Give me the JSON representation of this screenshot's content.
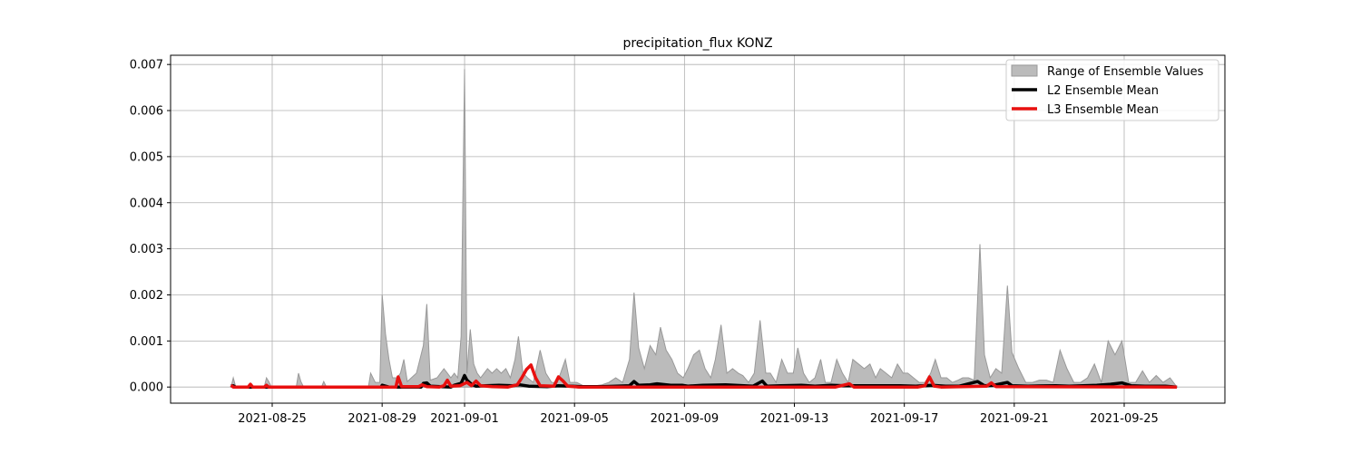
{
  "chart_data": {
    "type": "area",
    "title": "precipitation_flux KONZ",
    "xlabel": "",
    "ylabel": "",
    "ylim": [
      -0.00035,
      0.0072
    ],
    "x_ticks": [
      "2021-08-25",
      "2021-08-29",
      "2021-09-01",
      "2021-09-05",
      "2021-09-09",
      "2021-09-13",
      "2021-09-17",
      "2021-09-21",
      "2021-09-25"
    ],
    "y_ticks": [
      "0.000",
      "0.001",
      "0.002",
      "0.003",
      "0.004",
      "0.005",
      "0.006",
      "0.007"
    ],
    "grid": true,
    "legend_position": "top-right",
    "colors": {
      "range": "#bbbbbb",
      "range_edge": "#999999",
      "l2": "#000000",
      "l3": "#e8100f",
      "grid": "#b0b0b0"
    },
    "legend": [
      "Range of Ensemble Values",
      "L2 Ensemble Mean",
      "L3 Ensemble Mean"
    ],
    "range_upper": [
      [
        "2021-08-23T12:00",
        0
      ],
      [
        "2021-08-23T14:00",
        0.0002
      ],
      [
        "2021-08-23T16:00",
        2e-05
      ],
      [
        "2021-08-24T17:00",
        0
      ],
      [
        "2021-08-24T19:00",
        0.0002
      ],
      [
        "2021-08-24T21:00",
        0.00012
      ],
      [
        "2021-08-24T23:00",
        2e-05
      ],
      [
        "2021-08-25T21:00",
        0
      ],
      [
        "2021-08-25T23:00",
        0.0003
      ],
      [
        "2021-08-26T01:00",
        0.00012
      ],
      [
        "2021-08-26T03:00",
        2e-05
      ],
      [
        "2021-08-26T19:00",
        0
      ],
      [
        "2021-08-26T21:00",
        0.00012
      ],
      [
        "2021-08-26T23:00",
        2e-05
      ],
      [
        "2021-08-28T12:00",
        0
      ],
      [
        "2021-08-28T14:00",
        0.0003
      ],
      [
        "2021-08-28T18:00",
        0.0001
      ],
      [
        "2021-08-28T22:00",
        0.0001
      ],
      [
        "2021-08-29T00:00",
        0.002
      ],
      [
        "2021-08-29T03:00",
        0.00115
      ],
      [
        "2021-08-29T06:00",
        0.0006
      ],
      [
        "2021-08-29T09:00",
        0.0002
      ],
      [
        "2021-08-29T13:00",
        0.0002
      ],
      [
        "2021-08-29T16:00",
        0.0003
      ],
      [
        "2021-08-29T19:00",
        0.0006
      ],
      [
        "2021-08-29T22:00",
        0.00012
      ],
      [
        "2021-08-30T06:00",
        0.0003
      ],
      [
        "2021-08-30T09:00",
        0.0006
      ],
      [
        "2021-08-30T12:00",
        0.0009
      ],
      [
        "2021-08-30T15:00",
        0.0018
      ],
      [
        "2021-08-30T18:00",
        0.00015
      ],
      [
        "2021-08-31T00:00",
        0.0002
      ],
      [
        "2021-08-31T03:00",
        0.0003
      ],
      [
        "2021-08-31T06:00",
        0.0004
      ],
      [
        "2021-08-31T09:00",
        0.0003
      ],
      [
        "2021-08-31T12:00",
        0.0002
      ],
      [
        "2021-08-31T15:00",
        0.0003
      ],
      [
        "2021-08-31T18:00",
        0.0002
      ],
      [
        "2021-08-31T21:00",
        0.0011
      ],
      [
        "2021-09-01T00:00",
        0.0069
      ],
      [
        "2021-09-01T02:00",
        0.0003
      ],
      [
        "2021-09-01T05:00",
        0.00125
      ],
      [
        "2021-09-01T08:00",
        0.0005
      ],
      [
        "2021-09-01T11:00",
        0.0003
      ],
      [
        "2021-09-01T14:00",
        0.0002
      ],
      [
        "2021-09-01T20:00",
        0.0004
      ],
      [
        "2021-09-02T00:00",
        0.0003
      ],
      [
        "2021-09-02T04:00",
        0.0004
      ],
      [
        "2021-09-02T08:00",
        0.0003
      ],
      [
        "2021-09-02T12:00",
        0.0004
      ],
      [
        "2021-09-02T16:00",
        0.0002
      ],
      [
        "2021-09-02T20:00",
        0.0006
      ],
      [
        "2021-09-02T23:00",
        0.0011
      ],
      [
        "2021-09-03T03:00",
        0.0003
      ],
      [
        "2021-09-03T07:00",
        0.0002
      ],
      [
        "2021-09-03T12:00",
        0.0001
      ],
      [
        "2021-09-03T18:00",
        0.0008
      ],
      [
        "2021-09-03T23:00",
        0.0003
      ],
      [
        "2021-09-04T04:00",
        0.0001
      ],
      [
        "2021-09-04T09:00",
        0.0001
      ],
      [
        "2021-09-04T16:00",
        0.0006
      ],
      [
        "2021-09-04T20:00",
        0.0001
      ],
      [
        "2021-09-05T02:00",
        0.0001
      ],
      [
        "2021-09-05T10:00",
        0
      ],
      [
        "2021-09-06T00:00",
        5e-05
      ],
      [
        "2021-09-06T06:00",
        0.0001
      ],
      [
        "2021-09-06T12:00",
        0.0002
      ],
      [
        "2021-09-06T18:00",
        0.0001
      ],
      [
        "2021-09-07T00:00",
        0.0006
      ],
      [
        "2021-09-07T04:00",
        0.00205
      ],
      [
        "2021-09-07T08:00",
        0.00085
      ],
      [
        "2021-09-07T13:00",
        0.0004
      ],
      [
        "2021-09-07T18:00",
        0.0009
      ],
      [
        "2021-09-07T23:00",
        0.0007
      ],
      [
        "2021-09-08T03:00",
        0.0013
      ],
      [
        "2021-09-08T08:00",
        0.0008
      ],
      [
        "2021-09-08T13:00",
        0.0006
      ],
      [
        "2021-09-08T18:00",
        0.0003
      ],
      [
        "2021-09-08T23:00",
        0.0002
      ],
      [
        "2021-09-09T03:00",
        0.0004
      ],
      [
        "2021-09-09T08:00",
        0.0007
      ],
      [
        "2021-09-09T13:00",
        0.0008
      ],
      [
        "2021-09-09T18:00",
        0.0004
      ],
      [
        "2021-09-09T23:00",
        0.0002
      ],
      [
        "2021-09-10T03:00",
        0.0006
      ],
      [
        "2021-09-10T08:00",
        0.00135
      ],
      [
        "2021-09-10T13:00",
        0.0003
      ],
      [
        "2021-09-10T18:00",
        0.0004
      ],
      [
        "2021-09-10T23:00",
        0.0003
      ],
      [
        "2021-09-11T03:00",
        0.00025
      ],
      [
        "2021-09-11T08:00",
        0.0001
      ],
      [
        "2021-09-11T13:00",
        0.0003
      ],
      [
        "2021-09-11T18:00",
        0.00145
      ],
      [
        "2021-09-11T23:00",
        0.0003
      ],
      [
        "2021-09-12T03:00",
        0.0003
      ],
      [
        "2021-09-12T08:00",
        0.0001
      ],
      [
        "2021-09-12T13:00",
        0.0006
      ],
      [
        "2021-09-12T18:00",
        0.0003
      ],
      [
        "2021-09-12T23:00",
        0.0003
      ],
      [
        "2021-09-13T03:00",
        0.00085
      ],
      [
        "2021-09-13T08:00",
        0.0003
      ],
      [
        "2021-09-13T13:00",
        0.0001
      ],
      [
        "2021-09-13T18:00",
        0.0002
      ],
      [
        "2021-09-13T23:00",
        0.0006
      ],
      [
        "2021-09-14T03:00",
        0.0001
      ],
      [
        "2021-09-14T08:00",
        0.0001
      ],
      [
        "2021-09-14T13:00",
        0.0006
      ],
      [
        "2021-09-14T18:00",
        0.0003
      ],
      [
        "2021-09-14T23:00",
        0.0001
      ],
      [
        "2021-09-15T03:00",
        0.0006
      ],
      [
        "2021-09-15T08:00",
        0.0005
      ],
      [
        "2021-09-15T13:00",
        0.0004
      ],
      [
        "2021-09-15T18:00",
        0.0005
      ],
      [
        "2021-09-15T23:00",
        0.0002
      ],
      [
        "2021-09-16T03:00",
        0.0004
      ],
      [
        "2021-09-16T08:00",
        0.0003
      ],
      [
        "2021-09-16T13:00",
        0.0002
      ],
      [
        "2021-09-16T18:00",
        0.0005
      ],
      [
        "2021-09-16T23:00",
        0.0003
      ],
      [
        "2021-09-17T03:00",
        0.0003
      ],
      [
        "2021-09-17T08:00",
        0.0002
      ],
      [
        "2021-09-17T13:00",
        0.0001
      ],
      [
        "2021-09-17T18:00",
        0.0001
      ],
      [
        "2021-09-17T23:00",
        0.0003
      ],
      [
        "2021-09-18T03:00",
        0.0006
      ],
      [
        "2021-09-18T08:00",
        0.0002
      ],
      [
        "2021-09-18T13:00",
        0.0002
      ],
      [
        "2021-09-18T18:00",
        0.0001
      ],
      [
        "2021-09-18T23:00",
        0.00015
      ],
      [
        "2021-09-19T03:00",
        0.0002
      ],
      [
        "2021-09-19T08:00",
        0.0002
      ],
      [
        "2021-09-19T13:00",
        0.00015
      ],
      [
        "2021-09-19T18:00",
        0.0031
      ],
      [
        "2021-09-19T22:00",
        0.0007
      ],
      [
        "2021-09-20T03:00",
        0.0002
      ],
      [
        "2021-09-20T08:00",
        0.0004
      ],
      [
        "2021-09-20T13:00",
        0.0003
      ],
      [
        "2021-09-20T18:00",
        0.0022
      ],
      [
        "2021-09-20T22:00",
        0.00075
      ],
      [
        "2021-09-21T04:00",
        0.0004
      ],
      [
        "2021-09-21T10:00",
        0.0001
      ],
      [
        "2021-09-21T16:00",
        0.0001
      ],
      [
        "2021-09-21T22:00",
        0.00015
      ],
      [
        "2021-09-22T04:00",
        0.00015
      ],
      [
        "2021-09-22T10:00",
        0.0001
      ],
      [
        "2021-09-22T16:00",
        0.0008
      ],
      [
        "2021-09-22T22:00",
        0.0004
      ],
      [
        "2021-09-23T04:00",
        0.0001
      ],
      [
        "2021-09-23T10:00",
        0.0001
      ],
      [
        "2021-09-23T16:00",
        0.0002
      ],
      [
        "2021-09-23T22:00",
        0.0005
      ],
      [
        "2021-09-24T04:00",
        0.0001
      ],
      [
        "2021-09-24T10:00",
        0.001
      ],
      [
        "2021-09-24T16:00",
        0.0007
      ],
      [
        "2021-09-24T22:00",
        0.001
      ],
      [
        "2021-09-25T04:00",
        0.0001
      ],
      [
        "2021-09-25T10:00",
        0.0001
      ],
      [
        "2021-09-25T16:00",
        0.00035
      ],
      [
        "2021-09-25T22:00",
        0.0001
      ],
      [
        "2021-09-26T04:00",
        0.00025
      ],
      [
        "2021-09-26T10:00",
        0.0001
      ],
      [
        "2021-09-26T16:00",
        0.0002
      ],
      [
        "2021-09-26T22:00",
        0
      ]
    ],
    "series": [
      {
        "name": "L2 Ensemble Mean",
        "points": [
          [
            "2021-08-23T12:00",
            2e-05
          ],
          [
            "2021-08-23T14:00",
            3e-05
          ],
          [
            "2021-08-23T16:00",
            0
          ],
          [
            "2021-08-28T23:00",
            0
          ],
          [
            "2021-08-29T00:00",
            4e-05
          ],
          [
            "2021-08-29T03:00",
            2e-05
          ],
          [
            "2021-08-29T06:00",
            0
          ],
          [
            "2021-08-30T10:00",
            0
          ],
          [
            "2021-08-30T12:00",
            8e-05
          ],
          [
            "2021-08-30T15:00",
            9e-05
          ],
          [
            "2021-08-30T18:00",
            2e-05
          ],
          [
            "2021-08-31T12:00",
            0
          ],
          [
            "2021-08-31T15:00",
            4e-05
          ],
          [
            "2021-08-31T21:00",
            8e-05
          ],
          [
            "2021-09-01T00:00",
            0.00025
          ],
          [
            "2021-09-01T02:00",
            0.00015
          ],
          [
            "2021-09-01T06:00",
            6e-05
          ],
          [
            "2021-09-01T10:00",
            2e-05
          ],
          [
            "2021-09-01T18:00",
            3e-05
          ],
          [
            "2021-09-02T06:00",
            4e-05
          ],
          [
            "2021-09-02T18:00",
            3e-05
          ],
          [
            "2021-09-03T00:00",
            5e-05
          ],
          [
            "2021-09-03T08:00",
            2e-05
          ],
          [
            "2021-09-04T00:00",
            1e-05
          ],
          [
            "2021-09-04T10:00",
            3e-05
          ],
          [
            "2021-09-05T06:00",
            1e-05
          ],
          [
            "2021-09-06T00:00",
            1e-05
          ],
          [
            "2021-09-06T12:00",
            2e-05
          ],
          [
            "2021-09-07T00:00",
            3e-05
          ],
          [
            "2021-09-07T04:00",
            0.00012
          ],
          [
            "2021-09-07T08:00",
            4e-05
          ],
          [
            "2021-09-07T18:00",
            5e-05
          ],
          [
            "2021-09-08T00:00",
            7e-05
          ],
          [
            "2021-09-08T12:00",
            4e-05
          ],
          [
            "2021-09-08T22:00",
            4e-05
          ],
          [
            "2021-09-09T03:00",
            2e-05
          ],
          [
            "2021-09-09T16:00",
            4e-05
          ],
          [
            "2021-09-10T12:00",
            5e-05
          ],
          [
            "2021-09-11T12:00",
            2e-05
          ],
          [
            "2021-09-11T20:00",
            0.00013
          ],
          [
            "2021-09-12T00:00",
            2e-05
          ],
          [
            "2021-09-12T12:00",
            3e-05
          ],
          [
            "2021-09-13T06:00",
            4e-05
          ],
          [
            "2021-09-13T18:00",
            2e-05
          ],
          [
            "2021-09-14T08:00",
            4e-05
          ],
          [
            "2021-09-14T20:00",
            3e-05
          ],
          [
            "2021-09-15T06:00",
            3e-05
          ],
          [
            "2021-09-16T00:00",
            3e-05
          ],
          [
            "2021-09-16T20:00",
            3e-05
          ],
          [
            "2021-09-17T10:00",
            2e-05
          ],
          [
            "2021-09-18T00:00",
            4e-05
          ],
          [
            "2021-09-18T12:00",
            2e-05
          ],
          [
            "2021-09-19T00:00",
            2e-05
          ],
          [
            "2021-09-19T16:00",
            0.00012
          ],
          [
            "2021-09-19T22:00",
            3e-05
          ],
          [
            "2021-09-20T06:00",
            4e-05
          ],
          [
            "2021-09-20T18:00",
            0.0001
          ],
          [
            "2021-09-20T22:00",
            3e-05
          ],
          [
            "2021-09-21T12:00",
            2e-05
          ],
          [
            "2021-09-22T12:00",
            3e-05
          ],
          [
            "2021-09-23T00:00",
            2e-05
          ],
          [
            "2021-09-24T00:00",
            4e-05
          ],
          [
            "2021-09-24T12:00",
            6e-05
          ],
          [
            "2021-09-24T22:00",
            9e-05
          ],
          [
            "2021-09-25T06:00",
            3e-05
          ],
          [
            "2021-09-25T18:00",
            2e-05
          ],
          [
            "2021-09-26T12:00",
            2e-05
          ],
          [
            "2021-09-26T22:00",
            0
          ]
        ]
      },
      {
        "name": "L3 Ensemble Mean",
        "points": [
          [
            "2021-08-23T12:00",
            4e-05
          ],
          [
            "2021-08-23T14:00",
            0
          ],
          [
            "2021-08-24T03:00",
            0
          ],
          [
            "2021-08-24T05:00",
            6e-05
          ],
          [
            "2021-08-24T07:00",
            0
          ],
          [
            "2021-08-24T17:00",
            0
          ],
          [
            "2021-08-24T19:00",
            4e-05
          ],
          [
            "2021-08-24T21:00",
            0
          ],
          [
            "2021-08-29T12:00",
            0
          ],
          [
            "2021-08-29T14:00",
            0.00022
          ],
          [
            "2021-08-29T17:00",
            1e-05
          ],
          [
            "2021-08-30T08:00",
            1e-05
          ],
          [
            "2021-08-30T11:00",
            5e-05
          ],
          [
            "2021-08-30T15:00",
            1e-05
          ],
          [
            "2021-08-31T02:00",
            0
          ],
          [
            "2021-08-31T06:00",
            3e-05
          ],
          [
            "2021-08-31T09:00",
            0.00015
          ],
          [
            "2021-08-31T12:00",
            2e-05
          ],
          [
            "2021-08-31T20:00",
            3e-05
          ],
          [
            "2021-09-01T02:00",
            0.0001
          ],
          [
            "2021-09-01T06:00",
            3e-05
          ],
          [
            "2021-09-01T10:00",
            0.00013
          ],
          [
            "2021-09-01T14:00",
            3e-05
          ],
          [
            "2021-09-02T00:00",
            1e-05
          ],
          [
            "2021-09-02T14:00",
            0
          ],
          [
            "2021-09-02T22:00",
            5e-05
          ],
          [
            "2021-09-03T02:00",
            0.0002
          ],
          [
            "2021-09-03T06:00",
            0.00038
          ],
          [
            "2021-09-03T10:00",
            0.00048
          ],
          [
            "2021-09-03T14:00",
            0.0002
          ],
          [
            "2021-09-03T18:00",
            3e-05
          ],
          [
            "2021-09-04T06:00",
            2e-05
          ],
          [
            "2021-09-04T10:00",
            0.00022
          ],
          [
            "2021-09-04T14:00",
            0.00013
          ],
          [
            "2021-09-04T18:00",
            2e-05
          ],
          [
            "2021-09-05T04:00",
            0
          ],
          [
            "2021-09-14T12:00",
            0
          ],
          [
            "2021-09-15T00:00",
            7e-05
          ],
          [
            "2021-09-15T04:00",
            0
          ],
          [
            "2021-09-17T12:00",
            0
          ],
          [
            "2021-09-17T18:00",
            3e-05
          ],
          [
            "2021-09-17T22:00",
            0.00022
          ],
          [
            "2021-09-18T02:00",
            2e-05
          ],
          [
            "2021-09-18T08:00",
            0
          ],
          [
            "2021-09-20T00:00",
            2e-05
          ],
          [
            "2021-09-20T04:00",
            9e-05
          ],
          [
            "2021-09-20T08:00",
            1e-05
          ],
          [
            "2021-09-26T22:00",
            0
          ]
        ]
      }
    ]
  }
}
